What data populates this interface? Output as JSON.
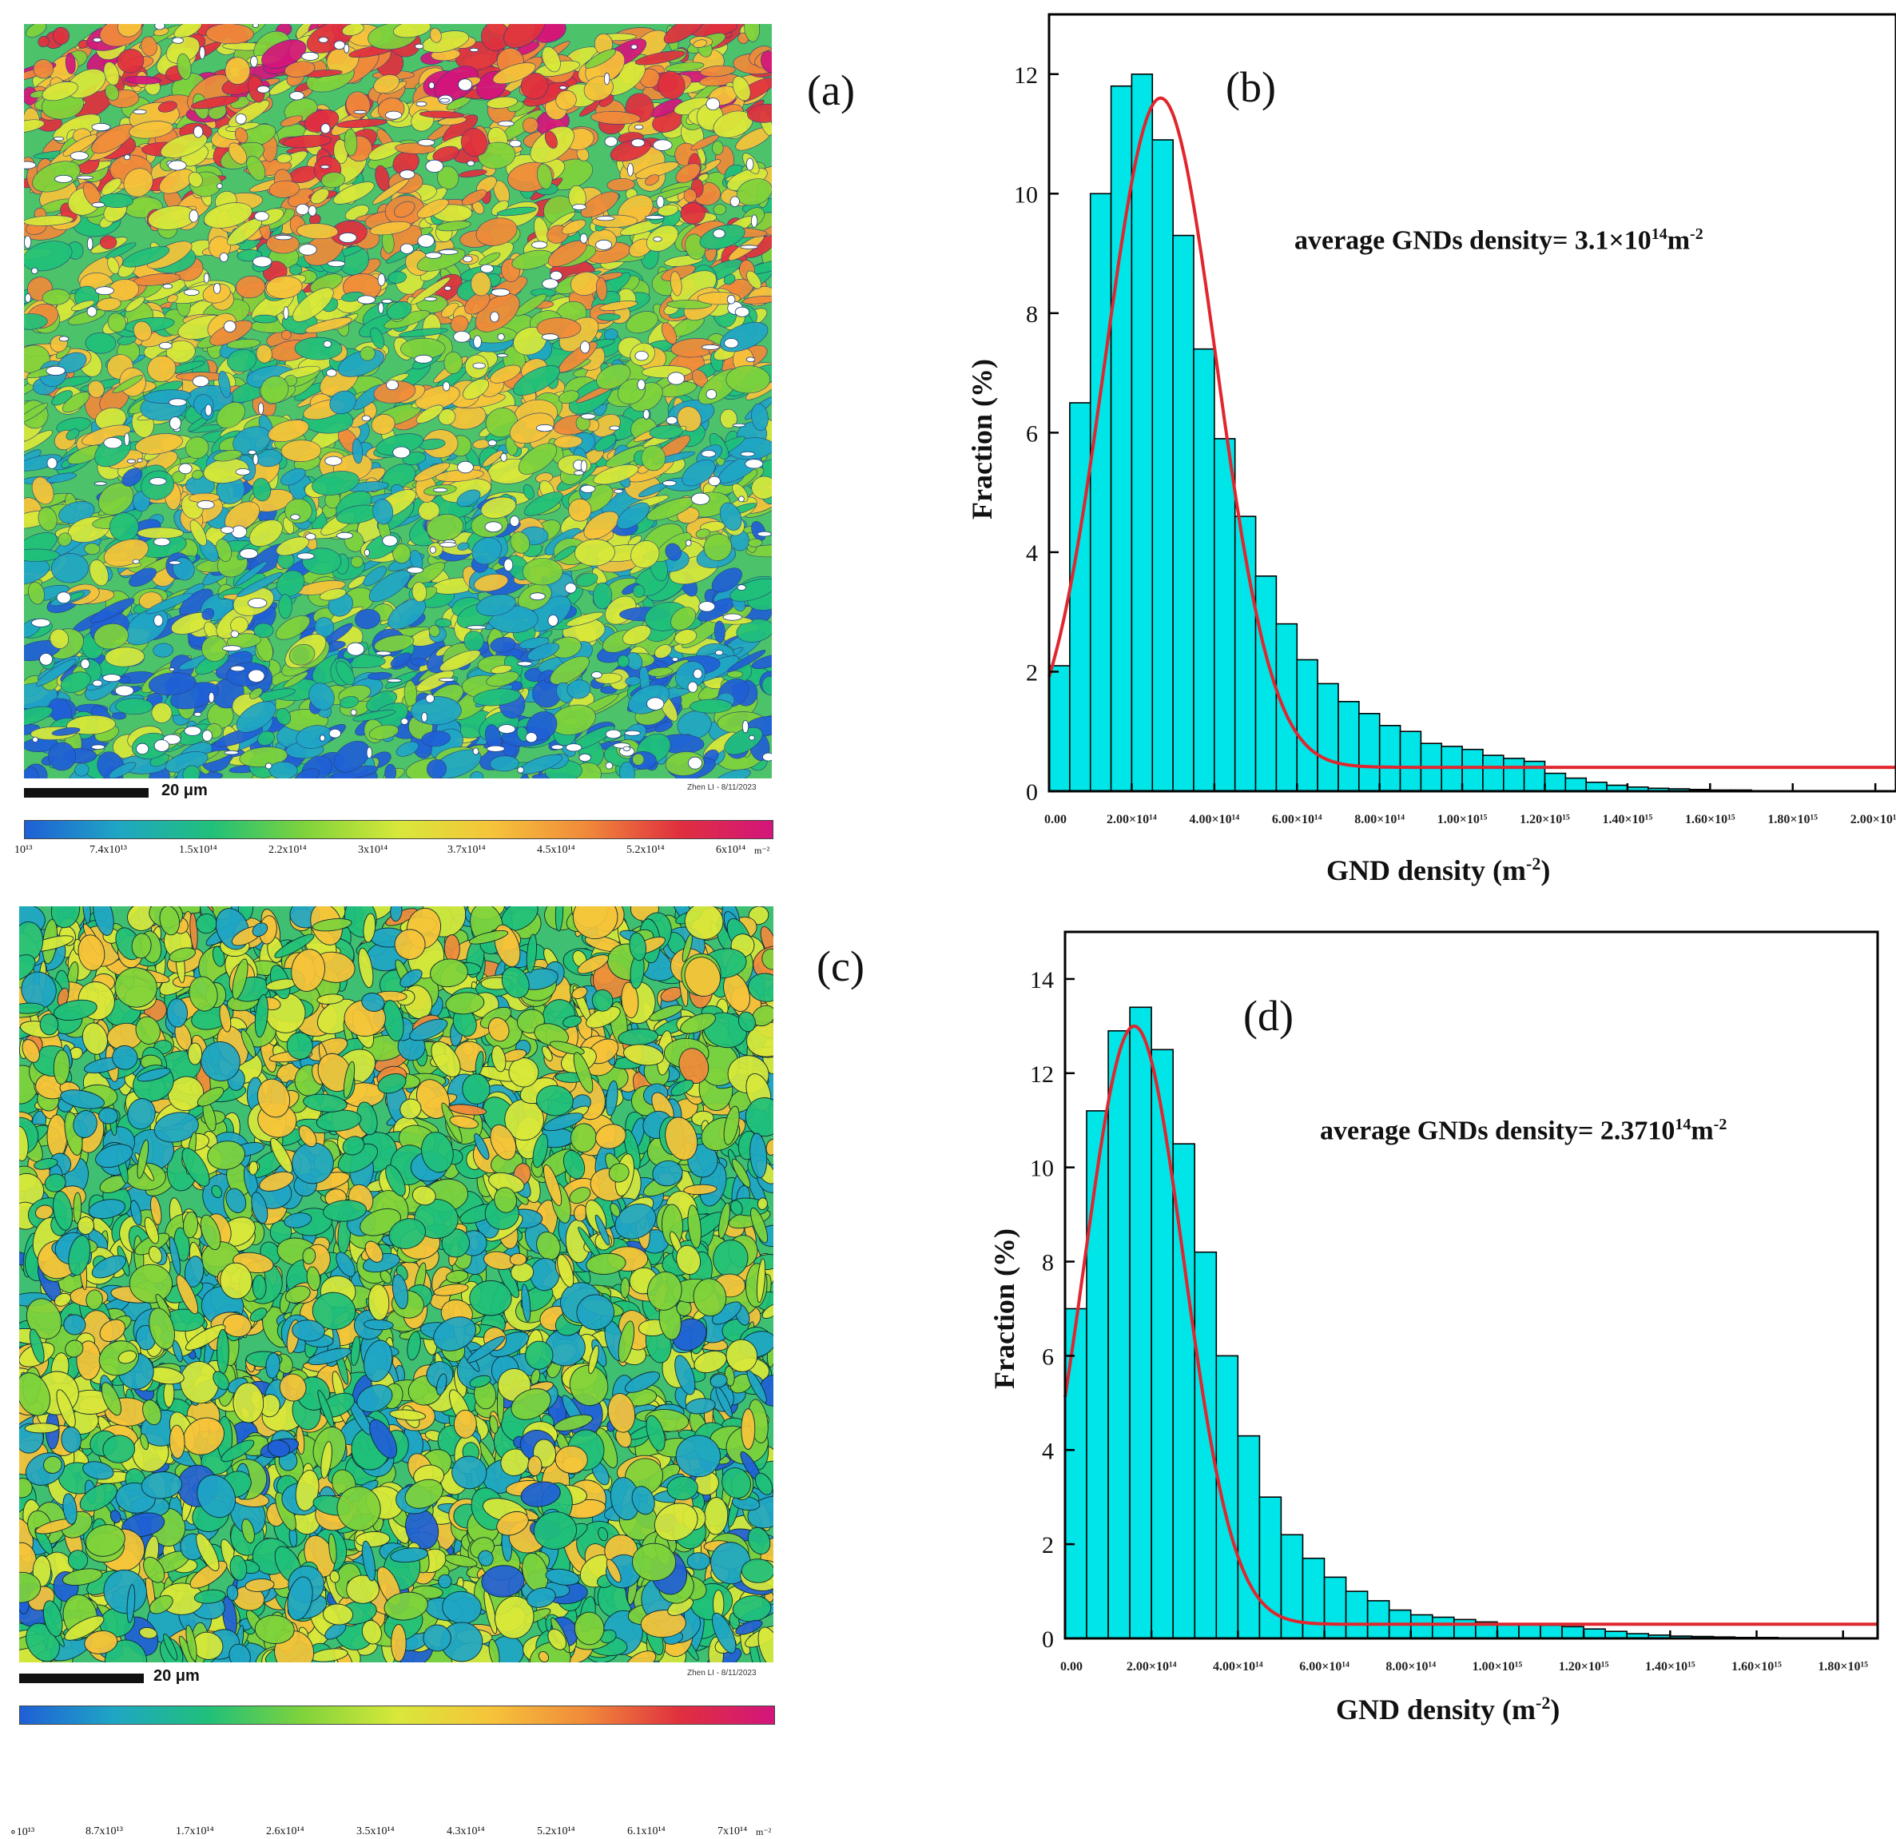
{
  "panels": {
    "a": "(a)",
    "b": "(b)",
    "c": "(c)",
    "d": "(d)"
  },
  "map_a": {
    "scalebar": "20 μm",
    "stamp": "Zhen LI - 8/11/2023",
    "colorbar_ticks": [
      "10¹³",
      "7.4x10¹³",
      "1.5x10¹⁴",
      "2.2x10¹⁴",
      "3x10¹⁴",
      "3.7x10¹⁴",
      "4.5x10¹⁴",
      "5.2x10¹⁴",
      "6x10¹⁴"
    ],
    "unit": "m⁻²"
  },
  "map_c": {
    "scalebar": "20 μm",
    "stamp": "Zhen LI - 8/11/2023",
    "colorbar_ticks": [
      "∘10¹³",
      "8.7x10¹³",
      "1.7x10¹⁴",
      "2.6x10¹⁴",
      "3.5x10¹⁴",
      "4.3x10¹⁴",
      "5.2x10¹⁴",
      "6.1x10¹⁴",
      "7x10¹⁴"
    ],
    "unit": "m⁻²"
  },
  "colors": {
    "bar_fill": "#00e5e8",
    "bar_stroke": "#000000",
    "fit_line": "#e0262e",
    "colormap": [
      "#1f5fd6",
      "#1fa6c4",
      "#20c07a",
      "#7fd33b",
      "#d8e83a",
      "#f6c33a",
      "#f08a3a",
      "#e0303e",
      "#d3157c"
    ]
  },
  "chart_data": [
    {
      "type": "bar",
      "panel": "(b)",
      "title": "",
      "xlabel": "GND density (m",
      "xlabel_sup": "-2",
      "xlabel_tail": ")",
      "ylabel": "Fraction (%)",
      "xlim": [
        0,
        2050000000000000.0
      ],
      "ylim": [
        0,
        13
      ],
      "bin_width": 50000000000000.0,
      "x_ticks": [
        0,
        200000000000000.0,
        400000000000000.0,
        600000000000000.0,
        800000000000000.0,
        1000000000000000.0,
        1200000000000000.0,
        1400000000000000.0,
        1600000000000000.0,
        1800000000000000.0,
        2000000000000000.0
      ],
      "x_tick_labels": [
        "0.00",
        "2.00×10¹⁴",
        "4.00×10¹⁴",
        "6.00×10¹⁴",
        "8.00×10¹⁴",
        "1.00×10¹⁵",
        "1.20×10¹⁵",
        "1.40×10¹⁵",
        "1.60×10¹⁵",
        "1.80×10¹⁵",
        "2.00×10¹⁵"
      ],
      "y_ticks": [
        0,
        2,
        4,
        6,
        8,
        10,
        12
      ],
      "y_tick_labels": [
        "0",
        "2",
        "4",
        "6",
        "8",
        "10",
        "12"
      ],
      "values": [
        2.1,
        6.5,
        10.0,
        11.8,
        12.0,
        10.9,
        9.3,
        7.4,
        5.9,
        4.6,
        3.6,
        2.8,
        2.2,
        1.8,
        1.5,
        1.3,
        1.1,
        1.0,
        0.8,
        0.75,
        0.7,
        0.6,
        0.55,
        0.5,
        0.3,
        0.22,
        0.15,
        0.1,
        0.07,
        0.05,
        0.04,
        0.03,
        0.02,
        0.02,
        0.01,
        0.01
      ],
      "fit": {
        "type": "gaussian",
        "peak_x": 270000000000000.0,
        "peak_y": 11.6,
        "sigma": 135000000000000.0,
        "baseline": 0.4
      },
      "annotation": {
        "text": "average GNDs density= 3.1×10",
        "sup": "14",
        "tail": "m",
        "tail_sup": "-2"
      }
    },
    {
      "type": "bar",
      "panel": "(d)",
      "title": "",
      "xlabel": "GND density (m",
      "xlabel_sup": "-2",
      "xlabel_tail": ")",
      "ylabel": "Fraction (%)",
      "xlim": [
        0,
        1880000000000000.0
      ],
      "ylim": [
        0,
        15
      ],
      "bin_width": 50000000000000.0,
      "x_ticks": [
        0,
        200000000000000.0,
        400000000000000.0,
        600000000000000.0,
        800000000000000.0,
        1000000000000000.0,
        1200000000000000.0,
        1400000000000000.0,
        1600000000000000.0,
        1800000000000000.0
      ],
      "x_tick_labels": [
        "0.00",
        "2.00×10¹⁴",
        "4.00×10¹⁴",
        "6.00×10¹⁴",
        "8.00×10¹⁴",
        "1.00×10¹⁵",
        "1.20×10¹⁵",
        "1.40×10¹⁵",
        "1.60×10¹⁵",
        "1.80×10¹⁵"
      ],
      "y_ticks": [
        0,
        2,
        4,
        6,
        8,
        10,
        12,
        14
      ],
      "y_tick_labels": [
        "0",
        "2",
        "4",
        "6",
        "8",
        "10",
        "12",
        "14"
      ],
      "values": [
        7.0,
        11.2,
        12.9,
        13.4,
        12.5,
        10.5,
        8.2,
        6.0,
        4.3,
        3.0,
        2.2,
        1.7,
        1.3,
        1.0,
        0.8,
        0.6,
        0.5,
        0.45,
        0.4,
        0.35,
        0.3,
        0.3,
        0.28,
        0.25,
        0.2,
        0.15,
        0.1,
        0.07,
        0.05,
        0.04,
        0.03,
        0.02,
        0.02,
        0.01
      ],
      "fit": {
        "type": "gaussian",
        "peak_x": 160000000000000.0,
        "peak_y": 13.0,
        "sigma": 115000000000000.0,
        "baseline": 0.3
      },
      "annotation": {
        "text": "average GNDs density= 2.3710",
        "sup": "14",
        "tail": "m",
        "tail_sup": "-2"
      }
    }
  ]
}
